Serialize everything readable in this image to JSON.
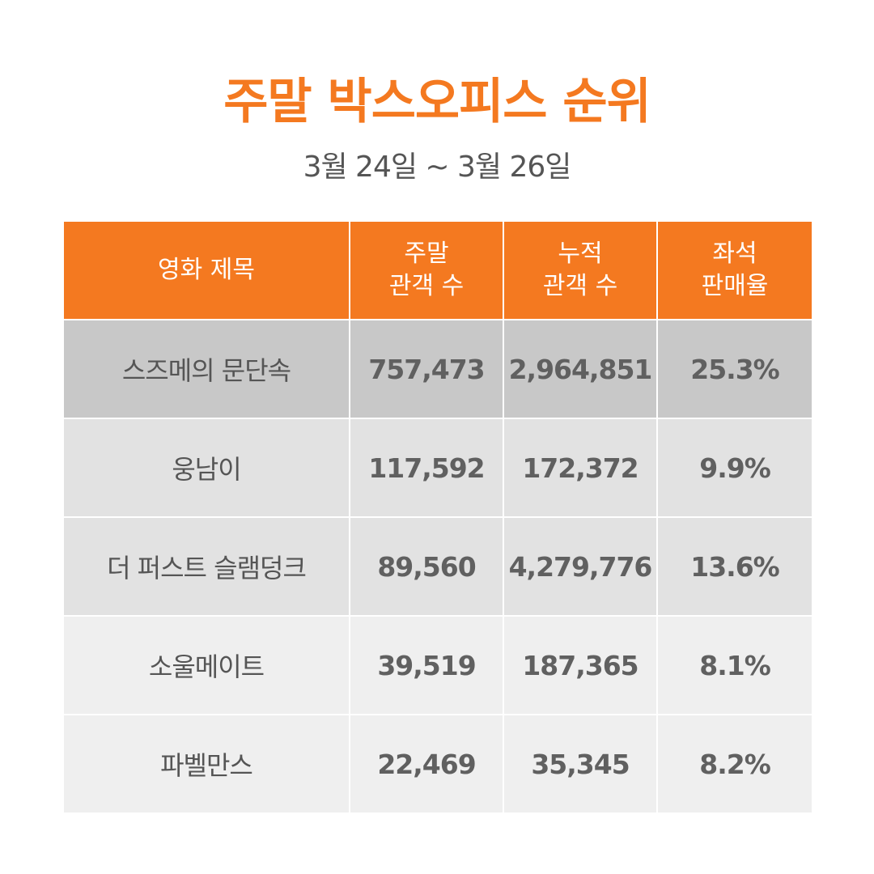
{
  "header": {
    "title": "주말 박스오피스 순위",
    "date_range": "3월 24일 ~ 3월 26일"
  },
  "table": {
    "columns": [
      {
        "line1": "영화 제목",
        "line2": ""
      },
      {
        "line1": "주말",
        "line2": "관객 수"
      },
      {
        "line1": "누적",
        "line2": "관객 수"
      },
      {
        "line1": "좌석",
        "line2": "판매율"
      }
    ],
    "rows": [
      {
        "title": "스즈메의 문단속",
        "weekend": "757,473",
        "cumulative": "2,964,851",
        "seat_rate": "25.3%"
      },
      {
        "title": "웅남이",
        "weekend": "117,592",
        "cumulative": "172,372",
        "seat_rate": "9.9%"
      },
      {
        "title": "더 퍼스트 슬램덩크",
        "weekend": "89,560",
        "cumulative": "4,279,776",
        "seat_rate": "13.6%"
      },
      {
        "title": "소울메이트",
        "weekend": "39,519",
        "cumulative": "187,365",
        "seat_rate": "8.1%"
      },
      {
        "title": "파벨만스",
        "weekend": "22,469",
        "cumulative": "35,345",
        "seat_rate": "8.2%"
      }
    ]
  },
  "colors": {
    "accent": "#f47920",
    "header_text": "#ffffff",
    "body_text": "#555555",
    "row_top": "#c8c8c8",
    "row_mid": "#e2e2e2",
    "row_low": "#efefef"
  }
}
